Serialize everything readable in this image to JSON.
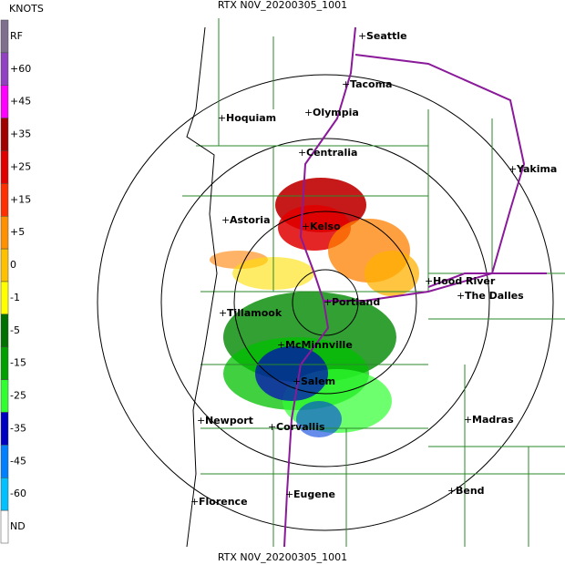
{
  "title_top": "RTX N0V_20200305_1001",
  "title_bottom": "RTX N0V_20200305_1001",
  "legend": {
    "unit": "KNOTS",
    "labels": [
      "RF",
      "+60",
      "+45",
      "+35",
      "+25",
      "+15",
      "+5",
      "0",
      "-1",
      "-5",
      "-15",
      "-25",
      "-35",
      "-45",
      "-60",
      "ND"
    ]
  },
  "cities": [
    "Seattle",
    "Tacoma",
    "Hoquiam",
    "Olympia",
    "Centralia",
    "Yakima",
    "Astoria",
    "Kelso",
    "Hood River",
    "The Dalles",
    "Tillamook",
    "Portland",
    "McMinnville",
    "Salem",
    "Newport",
    "Corvallis",
    "Madras",
    "Florence",
    "Eugene",
    "Bend"
  ]
}
